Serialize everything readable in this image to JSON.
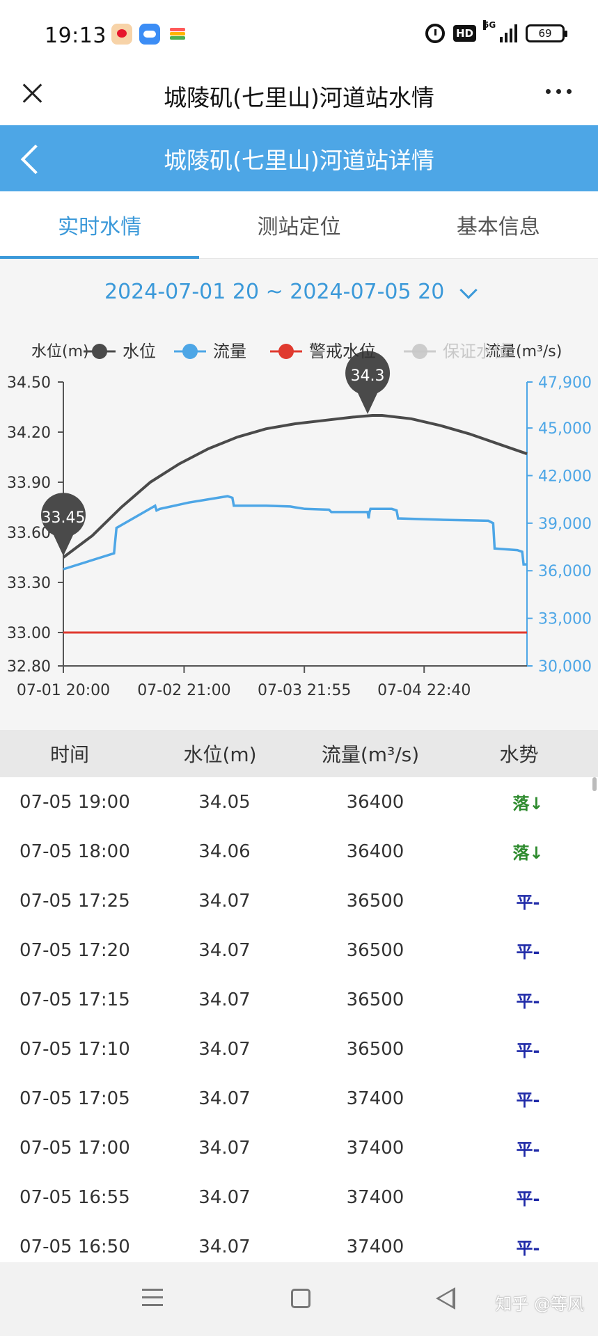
{
  "status_bar": {
    "time": "19:13",
    "hd": "HD",
    "network": "5G",
    "battery": "69",
    "icons": [
      "weibo-icon",
      "cloud-icon",
      "wallet-icon",
      "alarm-icon",
      "signal-icon",
      "battery-icon"
    ]
  },
  "titlebar": {
    "title": "城陵矶(七里山)河道站水情"
  },
  "header": {
    "title": "城陵矶(七里山)河道站详情"
  },
  "tabs": [
    {
      "label": "实时水情",
      "active": true
    },
    {
      "label": "测站定位",
      "active": false
    },
    {
      "label": "基本信息",
      "active": false
    }
  ],
  "date_range": "2024-07-01 20 ~ 2024-07-05 20",
  "chart_data": {
    "type": "line",
    "y_left_label": "水位(m)",
    "y_right_label": "流量(m³/s)",
    "legend": [
      {
        "name": "水位",
        "color": "#4a4a4a"
      },
      {
        "name": "流量",
        "color": "#4da6e6"
      },
      {
        "name": "警戒水位",
        "color": "#e03a2f"
      },
      {
        "name": "保证水位",
        "color": "#c8c8c8"
      }
    ],
    "ylim_left": [
      32.8,
      34.5
    ],
    "ylim_right": [
      30000,
      47900
    ],
    "y_left_ticks": [
      "34.50",
      "34.20",
      "33.90",
      "33.60",
      "33.30",
      "33.00",
      "32.80"
    ],
    "y_left_tick_values": [
      34.5,
      34.2,
      33.9,
      33.6,
      33.3,
      33.0,
      32.8
    ],
    "y_right_ticks": [
      "47,900",
      "45,000",
      "42,000",
      "39,000",
      "36,000",
      "33,000",
      "30,000"
    ],
    "y_right_tick_values": [
      47900,
      45000,
      42000,
      39000,
      36000,
      33000,
      30000
    ],
    "x_range_hours": [
      0,
      96
    ],
    "x_ticks": [
      {
        "label": "07-01 20:00",
        "hour": 0
      },
      {
        "label": "07-02 21:00",
        "hour": 25
      },
      {
        "label": "07-03 21:55",
        "hour": 49.9
      },
      {
        "label": "07-04 22:40",
        "hour": 74.7
      }
    ],
    "warning_level": 33.0,
    "water_level": {
      "hour": [
        0,
        6,
        12,
        18,
        24,
        30,
        36,
        42,
        48,
        54,
        60,
        64,
        66,
        72,
        78,
        84,
        90,
        96
      ],
      "values": [
        33.45,
        33.58,
        33.75,
        33.9,
        34.01,
        34.1,
        34.17,
        34.22,
        34.25,
        34.27,
        34.29,
        34.3,
        34.3,
        34.28,
        34.24,
        34.19,
        34.13,
        34.07
      ]
    },
    "flow": {
      "hour": [
        0,
        10.5,
        11,
        19,
        19.3,
        20,
        26,
        34,
        35,
        35.3,
        42,
        47,
        48,
        50,
        55,
        55.5,
        63,
        63.2,
        63.4,
        63.6,
        68,
        69,
        69.3,
        80,
        88,
        89,
        89.3,
        94,
        95,
        95.3,
        96
      ],
      "values": [
        36100,
        37100,
        38700,
        40100,
        39800,
        39900,
        40300,
        40700,
        40600,
        40100,
        40100,
        40050,
        40000,
        39900,
        39850,
        39700,
        39700,
        39300,
        39700,
        39900,
        39900,
        39800,
        39300,
        39200,
        39150,
        39000,
        37400,
        37300,
        37200,
        36400,
        36400
      ]
    },
    "peak_labels": [
      {
        "text": "33.45",
        "hour": 0,
        "value": 33.45
      },
      {
        "text": "34.3",
        "hour": 63,
        "value": 34.3
      }
    ]
  },
  "table": {
    "headers": [
      "时间",
      "水位(m)",
      "流量(m³/s)",
      "水势"
    ],
    "rows": [
      {
        "time": "07-05 19:00",
        "level": "34.05",
        "flow": "36400",
        "trend": "落↓",
        "trend_type": "fall"
      },
      {
        "time": "07-05 18:00",
        "level": "34.06",
        "flow": "36400",
        "trend": "落↓",
        "trend_type": "fall"
      },
      {
        "time": "07-05 17:25",
        "level": "34.07",
        "flow": "36500",
        "trend": "平-",
        "trend_type": "flat"
      },
      {
        "time": "07-05 17:20",
        "level": "34.07",
        "flow": "36500",
        "trend": "平-",
        "trend_type": "flat"
      },
      {
        "time": "07-05 17:15",
        "level": "34.07",
        "flow": "36500",
        "trend": "平-",
        "trend_type": "flat"
      },
      {
        "time": "07-05 17:10",
        "level": "34.07",
        "flow": "36500",
        "trend": "平-",
        "trend_type": "flat"
      },
      {
        "time": "07-05 17:05",
        "level": "34.07",
        "flow": "37400",
        "trend": "平-",
        "trend_type": "flat"
      },
      {
        "time": "07-05 17:00",
        "level": "34.07",
        "flow": "37400",
        "trend": "平-",
        "trend_type": "flat"
      },
      {
        "time": "07-05 16:55",
        "level": "34.07",
        "flow": "37400",
        "trend": "平-",
        "trend_type": "flat"
      },
      {
        "time": "07-05 16:50",
        "level": "34.07",
        "flow": "37400",
        "trend": "平-",
        "trend_type": "flat"
      }
    ]
  },
  "watermark": "知乎 @等风"
}
